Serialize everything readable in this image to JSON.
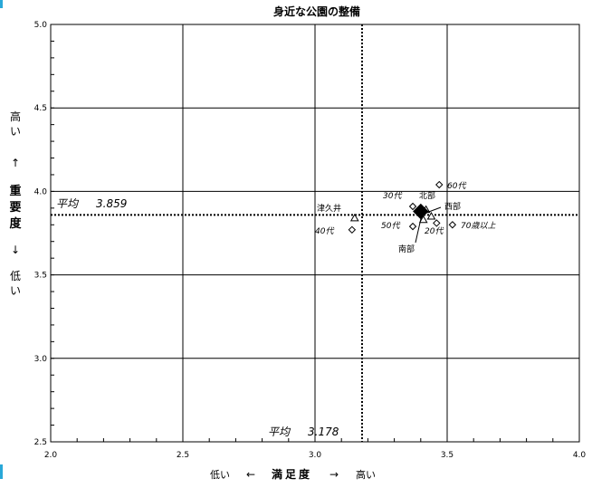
{
  "chart_data": {
    "type": "scatter",
    "title": "身近な公園の整備",
    "xlabel": {
      "low": "低い",
      "left_arrow": "←",
      "name": "満足度",
      "right_arrow": "→",
      "high": "高い"
    },
    "ylabel": {
      "high": "高い",
      "up_arrow": "↑",
      "name": "重要度",
      "down_arrow": "↓",
      "low": "低い"
    },
    "xlim": [
      2.0,
      4.0
    ],
    "ylim": [
      2.5,
      5.0
    ],
    "xticks": [
      "2.0",
      "2.5",
      "3.0",
      "3.5",
      "4.0"
    ],
    "yticks": [
      "2.5",
      "3.0",
      "3.5",
      "4.0",
      "4.5",
      "5.0"
    ],
    "grid": true,
    "average_x": {
      "label": "平均",
      "value_text": "3.178",
      "value": 3.178
    },
    "average_y": {
      "label": "平均",
      "value_text": "3.859",
      "value": 3.859
    },
    "points": [
      {
        "label": "60代",
        "x": 3.47,
        "y": 4.04,
        "marker": "diamond"
      },
      {
        "label": "30代",
        "x": 3.37,
        "y": 3.91,
        "marker": "diamond"
      },
      {
        "label": "北部",
        "x": 3.42,
        "y": 3.89,
        "marker": "triangle"
      },
      {
        "label": "西部",
        "x": 3.44,
        "y": 3.85,
        "marker": "triangle"
      },
      {
        "label": "南部",
        "x": 3.41,
        "y": 3.83,
        "marker": "triangle"
      },
      {
        "label": "50代",
        "x": 3.37,
        "y": 3.79,
        "marker": "diamond"
      },
      {
        "label": "20代",
        "x": 3.46,
        "y": 3.81,
        "marker": "diamond"
      },
      {
        "label": "70歳以上",
        "x": 3.52,
        "y": 3.8,
        "marker": "diamond"
      },
      {
        "label": "津久井",
        "x": 3.15,
        "y": 3.84,
        "marker": "triangle"
      },
      {
        "label": "40代",
        "x": 3.14,
        "y": 3.77,
        "marker": "diamond"
      },
      {
        "label": "",
        "x": 3.4,
        "y": 3.88,
        "marker": "diamond-filled"
      }
    ],
    "colors": {
      "grid": "#000000",
      "background": "#ffffff",
      "edge_accent": "#29a8d8"
    }
  }
}
